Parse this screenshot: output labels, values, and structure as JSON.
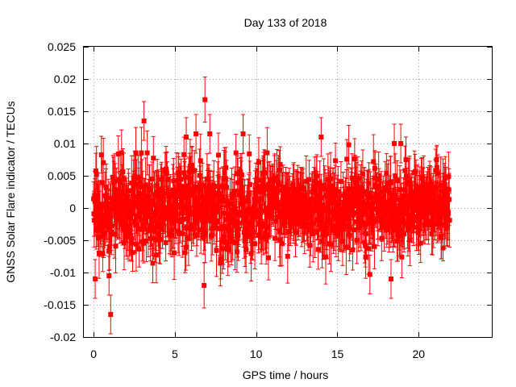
{
  "chart_data": {
    "type": "scatter",
    "title": "Day 133 of 2018",
    "xlabel": "GPS time / hours",
    "ylabel": "GNSS Solar Flare indicator / TECUs",
    "xlim": [
      -0.6,
      24.5
    ],
    "ylim": [
      -0.02,
      0.025
    ],
    "xticks": [
      0,
      5,
      10,
      15,
      20
    ],
    "xtick_labels": [
      "0",
      "5",
      "10",
      "15",
      "20"
    ],
    "yticks": [
      -0.02,
      -0.015,
      -0.01,
      -0.005,
      0,
      0.005,
      0.01,
      0.015,
      0.02,
      0.025
    ],
    "ytick_labels": [
      "-0.02",
      "-0.015",
      "-0.01",
      "-0.005",
      "0",
      "0.005",
      "0.01",
      "0.015",
      "0.02",
      "0.025"
    ],
    "grid": true,
    "legend": "none",
    "series_color": "#ff0000",
    "marker": "square",
    "error_bars": true,
    "typical_error": 0.0035,
    "notable_points": [
      {
        "x": 6.85,
        "y": 0.0168,
        "err": 0.0035
      },
      {
        "x": 3.1,
        "y": 0.0135,
        "err": 0.003
      },
      {
        "x": 1.05,
        "y": -0.0165,
        "err": 0.003
      },
      {
        "x": 0.1,
        "y": -0.011,
        "err": 0.003
      },
      {
        "x": 0.95,
        "y": -0.0105,
        "err": 0.003
      },
      {
        "x": 6.8,
        "y": -0.012,
        "err": 0.0035
      },
      {
        "x": 18.3,
        "y": -0.011,
        "err": 0.003
      },
      {
        "x": 17.0,
        "y": -0.0103,
        "err": 0.003
      },
      {
        "x": 5.7,
        "y": 0.011,
        "err": 0.003
      },
      {
        "x": 6.3,
        "y": 0.0115,
        "err": 0.003
      },
      {
        "x": 7.15,
        "y": 0.0115,
        "err": 0.003
      },
      {
        "x": 9.2,
        "y": 0.0115,
        "err": 0.003
      },
      {
        "x": 14.0,
        "y": 0.011,
        "err": 0.003
      },
      {
        "x": 15.7,
        "y": 0.0098,
        "err": 0.003
      },
      {
        "x": 18.5,
        "y": 0.01,
        "err": 0.003
      },
      {
        "x": 18.9,
        "y": 0.01,
        "err": 0.003
      },
      {
        "x": 21.1,
        "y": 0.0075,
        "err": 0.002
      },
      {
        "x": 21.5,
        "y": -0.0062,
        "err": 0.002
      }
    ],
    "bulk_sampling": {
      "x_start": 0.0,
      "x_end": 21.9,
      "x_step": 0.02,
      "segments": [
        {
          "x_from": 0.0,
          "x_to": 12.0,
          "spread": 0.0045
        },
        {
          "x_from": 12.0,
          "x_to": 13.2,
          "spread": 0.003
        },
        {
          "x_from": 13.2,
          "x_to": 19.5,
          "spread": 0.004
        },
        {
          "x_from": 19.5,
          "x_to": 21.9,
          "spread": 0.0033
        }
      ]
    }
  }
}
